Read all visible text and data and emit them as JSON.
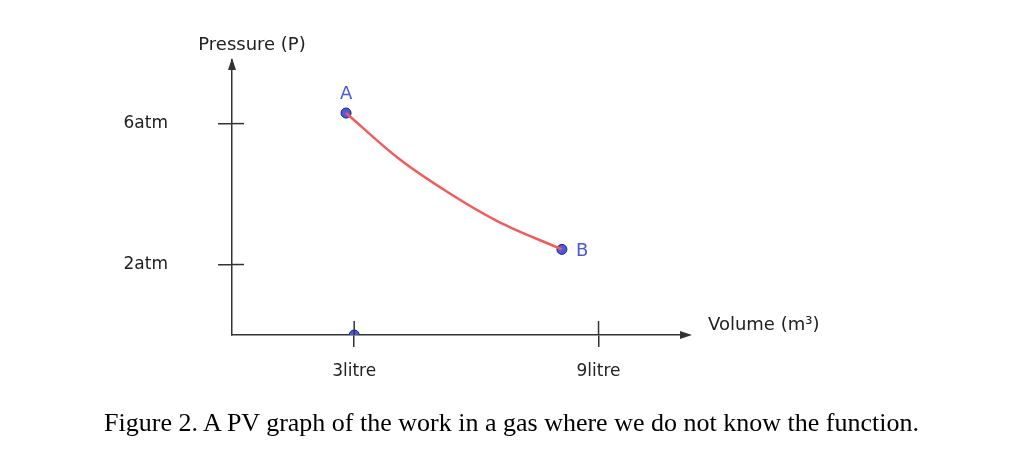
{
  "chart_data": {
    "type": "line",
    "xlabel": "Volume (m³)",
    "ylabel": "Pressure (P)",
    "xlim": [
      0,
      11
    ],
    "xticks": [
      {
        "value": 3,
        "label": "3litre"
      },
      {
        "value": 9,
        "label": "9litre"
      }
    ],
    "ylim": [
      0,
      7.8
    ],
    "yticks": [
      {
        "value": 2,
        "label": "2atm"
      },
      {
        "value": 6,
        "label": "6atm"
      }
    ],
    "grid": false,
    "legend": false,
    "series": [
      {
        "color": "#f25c5c",
        "marker": "none",
        "x": [
          2.8,
          4.1,
          5.3,
          6.5,
          8.1
        ],
        "values": [
          6.3,
          5.0,
          4.05,
          3.24,
          2.43
        ]
      },
      {
        "type": "scatter",
        "color": "#4a5adb",
        "marker": "circle",
        "x": [
          2.8,
          8.1,
          3
        ],
        "values": [
          6.3,
          2.43,
          0
        ]
      }
    ],
    "annotations": [
      {
        "text": "A",
        "x": 2.8,
        "y": 6.3
      },
      {
        "text": "B",
        "x": 8.1,
        "y": 2.43
      },
      "Figure 2. A PV graph of the work in a gas where we do not know the function."
    ]
  }
}
